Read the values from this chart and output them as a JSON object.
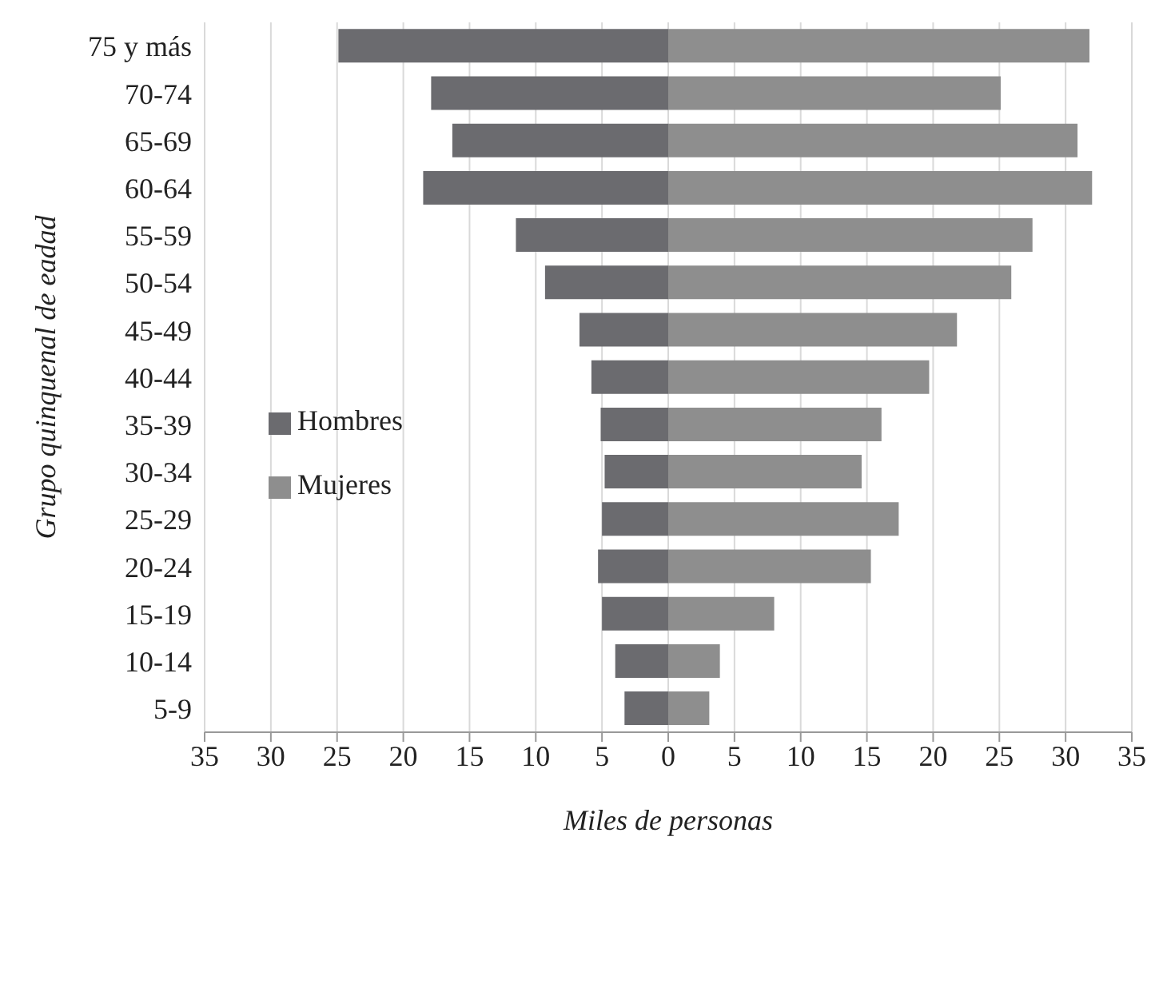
{
  "chart_data": {
    "type": "bar",
    "orientation": "horizontal",
    "stacked": true,
    "xlabel": "Miles de personas",
    "ylabel": "Grupo quinquenal de eadad",
    "categories": [
      "75 y más",
      "70-74",
      "65-69",
      "60-64",
      "55-59",
      "50-54",
      "45-49",
      "40-44",
      "35-39",
      "30-34",
      "25-29",
      "20-24",
      "15-19",
      "10-14",
      "5-9"
    ],
    "series": [
      {
        "name": "Mujeres",
        "color": "#8e8e8e",
        "values": [
          31.8,
          25.1,
          30.9,
          32.0,
          27.5,
          25.9,
          21.8,
          19.7,
          16.1,
          14.6,
          17.4,
          15.3,
          8.0,
          3.9,
          3.1
        ]
      },
      {
        "name": "Hombres",
        "color": "#6b6b6f",
        "values": [
          -24.9,
          -17.9,
          -16.3,
          -18.5,
          -11.5,
          -9.3,
          -6.7,
          -5.8,
          -5.1,
          -4.8,
          -5.0,
          -5.3,
          -5.0,
          -4.0,
          -3.3
        ]
      }
    ],
    "xlim": [
      -35,
      35
    ],
    "xticks": [
      {
        "value": -35,
        "label": "35"
      },
      {
        "value": -30,
        "label": "30"
      },
      {
        "value": -25,
        "label": "25"
      },
      {
        "value": -20,
        "label": "20"
      },
      {
        "value": -15,
        "label": "15"
      },
      {
        "value": -10,
        "label": "10"
      },
      {
        "value": -5,
        "label": "5"
      },
      0,
      5,
      10,
      15,
      20,
      25,
      30,
      35
    ],
    "grid": "x",
    "legend": "left"
  }
}
